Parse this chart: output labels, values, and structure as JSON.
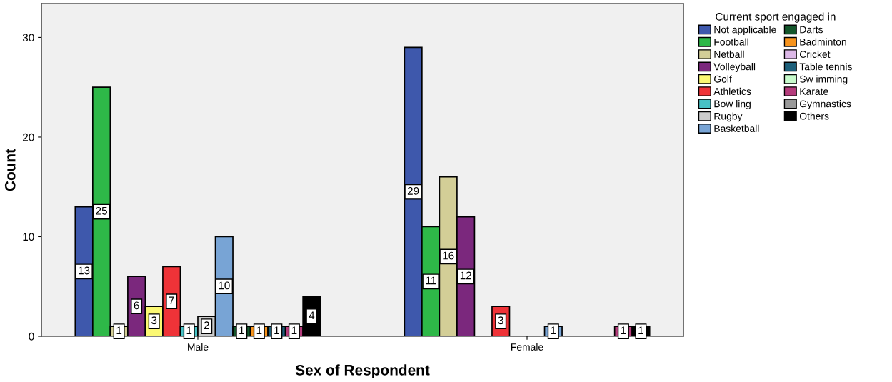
{
  "chart_data": {
    "type": "bar",
    "xlabel": "Sex of Respondent",
    "ylabel": "Count",
    "legend_title": "Current sport engaged in",
    "categories": [
      "Male",
      "Female"
    ],
    "series": [
      {
        "name": "Not applicable",
        "color": "#3e58ac",
        "values": [
          13,
          29
        ]
      },
      {
        "name": "Football",
        "color": "#2eb848",
        "values": [
          25,
          11
        ]
      },
      {
        "name": "Netball",
        "color": "#d3ce97",
        "values": [
          1,
          16
        ]
      },
      {
        "name": "Volleyball",
        "color": "#7b287d",
        "values": [
          6,
          12
        ]
      },
      {
        "name": "Golf",
        "color": "#fbf873",
        "values": [
          3,
          null
        ]
      },
      {
        "name": "Athletics",
        "color": "#ef3338",
        "values": [
          7,
          3
        ]
      },
      {
        "name": "Bow ling",
        "color": "#48c2c5",
        "values": [
          1,
          null
        ]
      },
      {
        "name": "Rugby",
        "color": "#cccccc",
        "values": [
          2,
          null
        ]
      },
      {
        "name": "Basketball",
        "color": "#78a4d5",
        "values": [
          10,
          1
        ]
      },
      {
        "name": "Darts",
        "color": "#13562b",
        "values": [
          1,
          null
        ]
      },
      {
        "name": "Badminton",
        "color": "#f7941d",
        "values": [
          1,
          null
        ]
      },
      {
        "name": "Cricket",
        "color": "#dcb8e7",
        "values": [
          null,
          null
        ]
      },
      {
        "name": "Table tennis",
        "color": "#1c5f7a",
        "values": [
          1,
          null
        ]
      },
      {
        "name": "Sw imming",
        "color": "#c7fbcc",
        "values": [
          null,
          null
        ]
      },
      {
        "name": "Karate",
        "color": "#b53c7c",
        "values": [
          1,
          1
        ]
      },
      {
        "name": "Gymnastics",
        "color": "#999999",
        "values": [
          null,
          null
        ]
      },
      {
        "name": "Others",
        "color": "#000000",
        "values": [
          4,
          1
        ]
      }
    ],
    "ylim": [
      0,
      33.4
    ],
    "yticks": [
      0,
      10,
      20,
      30
    ],
    "grid": false,
    "legend": "right",
    "data_labels": true
  }
}
